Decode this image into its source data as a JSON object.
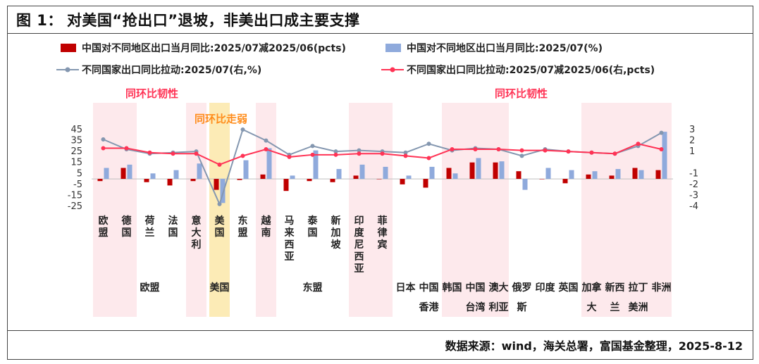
{
  "figure": {
    "prefix": "图 1：",
    "title": "对美国“抢出口”退坡，非美出口成主要支撑",
    "source": "数据来源：wind，海关总署，富国基金整理，2025-8-12"
  },
  "colors": {
    "bar_diff": "#c00000",
    "bar_yoy": "#8faadc",
    "line_contrib": "#8497b0",
    "line_contrib_diff": "#ff3355",
    "resilient_band": "#fde9ec",
    "weak_band": "#fcebb6",
    "resilient_text": "#ff3355",
    "weak_text": "#ff8c1a"
  },
  "annotations": {
    "resilient_left": "同环比韧性",
    "resilient_right": "同环比韧性",
    "weak": "同环比走弱"
  },
  "chart_data": {
    "type": "bar",
    "categories": [
      [
        "欧",
        "盟"
      ],
      [
        "德",
        "国"
      ],
      [
        "荷",
        "兰"
      ],
      [
        "法",
        "国"
      ],
      [
        "意",
        "大",
        "利"
      ],
      [
        "美",
        "国"
      ],
      [
        "东",
        "盟"
      ],
      [
        "越",
        "南"
      ],
      [
        "马",
        "来",
        "西",
        "亚"
      ],
      [
        "泰",
        "国"
      ],
      [
        "新",
        "加",
        "坡"
      ],
      [
        "印",
        "度",
        "尼",
        "西",
        "亚"
      ],
      [
        "菲",
        "律",
        "宾"
      ],
      [
        "日本"
      ],
      [
        "中国",
        "香港"
      ],
      [
        "韩国"
      ],
      [
        "中国",
        "台湾"
      ],
      [
        "澳大",
        "利亚"
      ],
      [
        "俄罗",
        "斯"
      ],
      [
        "印度"
      ],
      [
        "英国"
      ],
      [
        "加拿",
        "大"
      ],
      [
        "新西",
        "兰"
      ],
      [
        "拉丁",
        "美洲"
      ],
      [
        "非洲"
      ]
    ],
    "group_labels": [
      "欧盟",
      "美国",
      "东盟"
    ],
    "series": [
      {
        "name": "中国对不同地区出口当月同比:2025/07减2025/06(pcts)",
        "type": "bar",
        "axis": "left",
        "values": [
          -2,
          10,
          -3,
          -6,
          -2,
          -10,
          -1,
          4,
          -11,
          -2,
          -3,
          3,
          0,
          -5,
          -8,
          10,
          15,
          15,
          7,
          0,
          -4,
          4,
          3,
          10,
          8
        ]
      },
      {
        "name": "中国对不同地区出口当月同比:2025/07(%)",
        "type": "bar",
        "axis": "left",
        "values": [
          10,
          13,
          5,
          8,
          14,
          -22,
          17,
          28,
          3,
          26,
          9,
          13,
          11,
          3,
          11,
          5,
          19,
          16,
          -10,
          10,
          8,
          7,
          9,
          8,
          43
        ]
      },
      {
        "name": "不同国家出口同比拉动:2025/07(右,%)",
        "type": "line",
        "axis": "right",
        "values": [
          2.1,
          1.2,
          0.8,
          0.9,
          1.0,
          -3.8,
          3.0,
          2.0,
          0.7,
          1.5,
          1.0,
          1.1,
          1.0,
          0.9,
          1.7,
          1.1,
          1.3,
          1.2,
          0.6,
          1.2,
          1.0,
          0.9,
          0.8,
          1.5,
          2.7
        ]
      },
      {
        "name": "不同国家出口同比拉动:2025/07减2025/06(右,pcts)",
        "type": "line",
        "axis": "right",
        "values": [
          1.3,
          1.3,
          0.9,
          0.8,
          0.8,
          -0.2,
          0.6,
          1.2,
          0.5,
          0.7,
          0.7,
          0.8,
          0.8,
          0.6,
          0.4,
          1.2,
          1.2,
          1.2,
          1.1,
          1.1,
          1.0,
          0.9,
          0.8,
          1.7,
          1.2
        ]
      }
    ],
    "y_left": {
      "ticks": [
        45,
        35,
        25,
        15,
        5,
        -5,
        -15,
        -25
      ],
      "range": [
        -25,
        45
      ]
    },
    "y_right": {
      "ticks": [
        3,
        2,
        1,
        -1,
        -2,
        -3,
        -4
      ],
      "range": [
        -4,
        3
      ]
    }
  }
}
